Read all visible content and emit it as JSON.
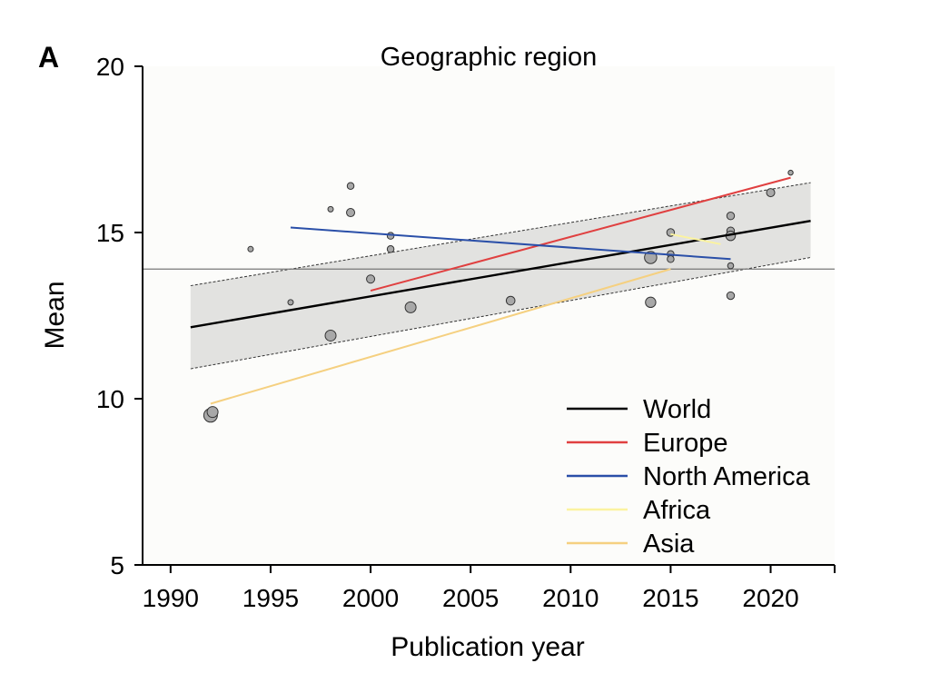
{
  "chart_data": {
    "type": "scatter",
    "panel_label": "A",
    "title": "Geographic region",
    "xlabel": "Publication year",
    "ylabel": "Mean",
    "xlim": [
      1988.6,
      2023.2
    ],
    "ylim": [
      5,
      20
    ],
    "x_ticks": [
      1990,
      1995,
      2000,
      2005,
      2010,
      2015,
      2020
    ],
    "y_ticks": [
      5,
      10,
      15,
      20
    ],
    "reference_line": 13.9,
    "confidence_band": {
      "x": [
        1991,
        2022
      ],
      "upper": [
        13.4,
        16.5
      ],
      "lower": [
        10.9,
        14.25
      ]
    },
    "points": [
      {
        "x": 1992,
        "y": 9.5,
        "weight": 4
      },
      {
        "x": 1992.1,
        "y": 9.6,
        "weight": 3
      },
      {
        "x": 1994,
        "y": 14.5,
        "weight": 1
      },
      {
        "x": 1996,
        "y": 12.9,
        "weight": 1
      },
      {
        "x": 1998,
        "y": 15.7,
        "weight": 1
      },
      {
        "x": 1998,
        "y": 11.9,
        "weight": 3
      },
      {
        "x": 1999,
        "y": 16.4,
        "weight": 1.5
      },
      {
        "x": 1999,
        "y": 15.6,
        "weight": 2
      },
      {
        "x": 2000,
        "y": 13.6,
        "weight": 2
      },
      {
        "x": 2001,
        "y": 14.9,
        "weight": 1.5
      },
      {
        "x": 2001,
        "y": 14.5,
        "weight": 1.5
      },
      {
        "x": 2002,
        "y": 12.75,
        "weight": 3
      },
      {
        "x": 2007,
        "y": 12.95,
        "weight": 2.2
      },
      {
        "x": 2014,
        "y": 14.2,
        "weight": 1
      },
      {
        "x": 2014,
        "y": 14.25,
        "weight": 3.5
      },
      {
        "x": 2014,
        "y": 12.9,
        "weight": 2.8
      },
      {
        "x": 2015,
        "y": 15.0,
        "weight": 1.8
      },
      {
        "x": 2015,
        "y": 14.35,
        "weight": 1.5
      },
      {
        "x": 2015,
        "y": 14.2,
        "weight": 1.5
      },
      {
        "x": 2018,
        "y": 15.5,
        "weight": 1.8
      },
      {
        "x": 2018,
        "y": 15.05,
        "weight": 1.8
      },
      {
        "x": 2018,
        "y": 14.9,
        "weight": 2.5
      },
      {
        "x": 2018,
        "y": 14.0,
        "weight": 1.2
      },
      {
        "x": 2018,
        "y": 13.1,
        "weight": 1.8
      },
      {
        "x": 2020,
        "y": 16.2,
        "weight": 2
      },
      {
        "x": 2021,
        "y": 16.8,
        "weight": 0.8
      }
    ],
    "series": [
      {
        "name": "World",
        "color": "#000000",
        "x": [
          1991,
          2022
        ],
        "y": [
          12.15,
          15.35
        ]
      },
      {
        "name": "Europe",
        "color": "#e04040",
        "x": [
          2000,
          2021
        ],
        "y": [
          13.25,
          16.65
        ]
      },
      {
        "name": "North America",
        "color": "#2a4fa8",
        "x": [
          1996,
          2018
        ],
        "y": [
          15.15,
          14.2
        ]
      },
      {
        "name": "Africa",
        "color": "#fbf3a0",
        "x": [
          2015,
          2017.5
        ],
        "y": [
          14.95,
          14.65
        ]
      },
      {
        "name": "Asia",
        "color": "#f5d080",
        "x": [
          1992,
          2015
        ],
        "y": [
          9.85,
          13.9
        ]
      }
    ],
    "legend_position": "bottom-right"
  }
}
